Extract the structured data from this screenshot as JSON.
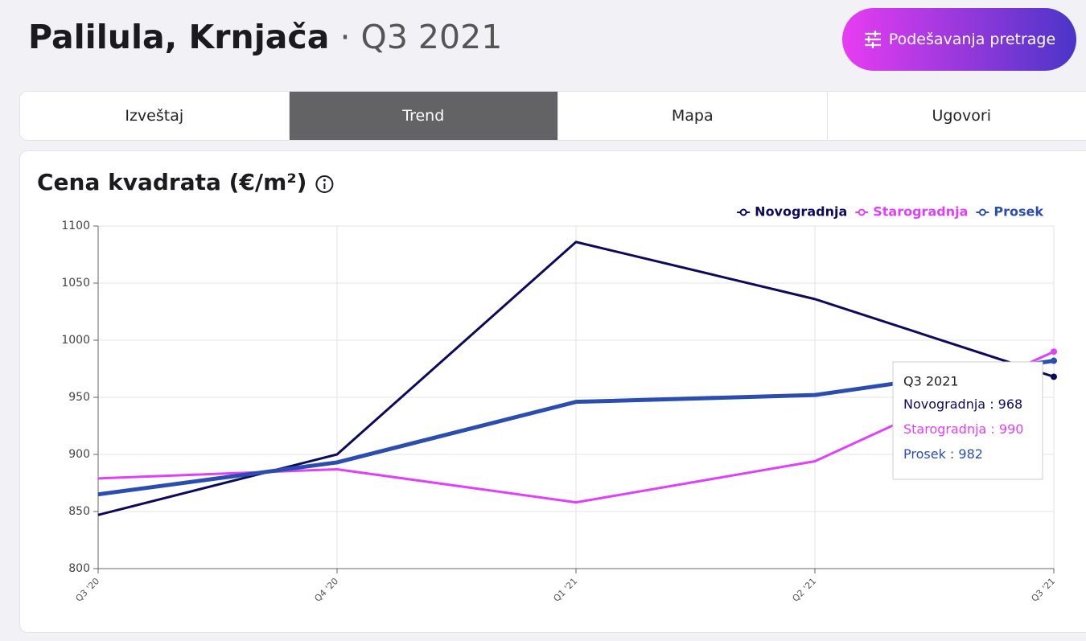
{
  "header": {
    "title": "Palilula, Krnjača",
    "separator": "·",
    "period": "Q3 2021",
    "button": "Podešavanja pretrage"
  },
  "tabs": {
    "items": [
      "Izveštaj",
      "Trend",
      "Mapa",
      "Ugovori"
    ],
    "active": 1
  },
  "chart_data": {
    "type": "line",
    "title": "Cena kvadrata (€/m²)",
    "categories": [
      "Q3 '20",
      "Q4 '20",
      "Q1 '21",
      "Q2 '21",
      "Q3 '21"
    ],
    "series": [
      {
        "name": "Novogradnja",
        "color": "#0d0a5c",
        "width": 3,
        "values": [
          847,
          900,
          1086,
          1036,
          968
        ]
      },
      {
        "name": "Starogradnja",
        "color": "#e040fb",
        "width": 3,
        "values": [
          879,
          887,
          858,
          894,
          990
        ]
      },
      {
        "name": "Prosek",
        "color": "#2b4db0",
        "width": 5,
        "values": [
          865,
          893,
          946,
          952,
          982
        ]
      }
    ],
    "ylim": [
      800,
      1100
    ],
    "yticks": [
      800,
      850,
      900,
      950,
      1000,
      1050,
      1100
    ],
    "grid": true,
    "legend": "top-right",
    "tooltip": {
      "title": "Q3 2021",
      "separator": " : ",
      "index": 4
    }
  }
}
